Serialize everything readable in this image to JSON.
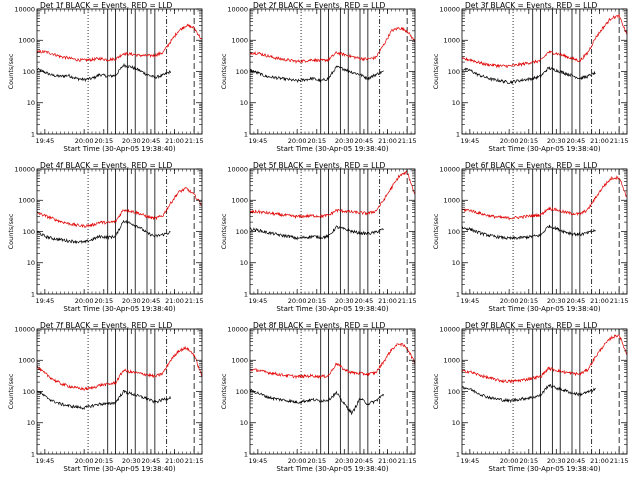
{
  "figure": {
    "x_range_minutes": [
      0,
      42
    ],
    "y_range": [
      1,
      10000
    ],
    "y_scale": "log",
    "x_ticks": [
      {
        "label": "19:45",
        "t": 2
      },
      {
        "label": "20:00",
        "t": 12
      },
      {
        "label": "20:15",
        "t": 17
      },
      {
        "label": "20:30",
        "t": 24
      },
      {
        "label": "20:45",
        "t": 29
      },
      {
        "label": "21:00",
        "t": 35
      },
      {
        "label": "21:15",
        "t": 40
      }
    ],
    "y_ticks": [
      {
        "label": "1",
        "v": 1
      },
      {
        "label": "10",
        "v": 10
      },
      {
        "label": "100",
        "v": 100
      },
      {
        "label": "1000",
        "v": 1000
      },
      {
        "label": "10000",
        "v": 10000
      }
    ],
    "ylabel": "Counts/sec",
    "xlabel": "Start Time (30-Apr-05 19:38:40)",
    "colors": {
      "events": "#000000",
      "lld": "#e00000",
      "axis": "#000000"
    },
    "markers": {
      "dotted": 13,
      "solid": [
        18,
        20,
        23,
        25,
        28,
        30
      ],
      "dashed": [
        33,
        40
      ]
    }
  },
  "chart_data": [
    {
      "type": "line",
      "title": "Det 1f BLACK = Events, RED = LLD",
      "series": [
        {
          "name": "Events",
          "t": [
            0,
            2,
            4,
            6,
            8,
            10,
            12,
            14,
            16,
            18,
            20,
            22,
            24,
            26,
            28,
            30,
            32,
            34
          ],
          "values": [
            120,
            95,
            75,
            70,
            75,
            60,
            55,
            60,
            80,
            70,
            75,
            160,
            140,
            110,
            80,
            65,
            75,
            100
          ]
        },
        {
          "name": "LLD",
          "t": [
            0,
            2,
            4,
            6,
            8,
            10,
            12,
            14,
            16,
            18,
            20,
            22,
            24,
            26,
            28,
            30,
            32,
            34,
            36,
            38,
            40,
            42
          ],
          "values": [
            420,
            430,
            370,
            300,
            270,
            240,
            230,
            240,
            260,
            240,
            250,
            380,
            360,
            330,
            320,
            330,
            400,
            900,
            2000,
            3000,
            2500,
            1000
          ]
        }
      ]
    },
    {
      "type": "line",
      "title": "Det 2f BLACK = Events, RED = LLD",
      "series": [
        {
          "name": "Events",
          "t": [
            0,
            2,
            4,
            6,
            8,
            10,
            12,
            14,
            16,
            18,
            20,
            22,
            24,
            26,
            28,
            30,
            32,
            34
          ],
          "values": [
            110,
            90,
            70,
            65,
            60,
            55,
            50,
            55,
            60,
            50,
            60,
            140,
            120,
            95,
            80,
            60,
            80,
            100
          ]
        },
        {
          "name": "LLD",
          "t": [
            0,
            2,
            4,
            6,
            8,
            10,
            12,
            14,
            16,
            18,
            20,
            22,
            24,
            26,
            28,
            30,
            32,
            34,
            36,
            38,
            40,
            42
          ],
          "values": [
            400,
            390,
            330,
            280,
            250,
            230,
            210,
            220,
            240,
            220,
            240,
            400,
            350,
            300,
            260,
            250,
            280,
            700,
            2000,
            2500,
            2000,
            900
          ]
        }
      ]
    },
    {
      "type": "line",
      "title": "Det 3f BLACK = Events, RED = LLD",
      "series": [
        {
          "name": "Events",
          "t": [
            0,
            2,
            4,
            6,
            8,
            10,
            12,
            14,
            16,
            18,
            20,
            22,
            24,
            26,
            28,
            30,
            32,
            34
          ],
          "values": [
            120,
            110,
            80,
            65,
            55,
            50,
            45,
            50,
            55,
            60,
            70,
            130,
            110,
            90,
            75,
            60,
            70,
            90
          ]
        },
        {
          "name": "LLD",
          "t": [
            0,
            2,
            4,
            6,
            8,
            10,
            12,
            14,
            16,
            18,
            20,
            22,
            24,
            26,
            28,
            30,
            32,
            34,
            36,
            38,
            40,
            42
          ],
          "values": [
            250,
            240,
            200,
            170,
            160,
            150,
            150,
            160,
            180,
            200,
            220,
            420,
            380,
            320,
            260,
            220,
            400,
            1200,
            2600,
            5200,
            6000,
            1500
          ]
        }
      ]
    },
    {
      "type": "line",
      "title": "Det 4f BLACK = Events, RED = LLD",
      "series": [
        {
          "name": "Events",
          "t": [
            0,
            2,
            4,
            6,
            8,
            10,
            12,
            14,
            16,
            18,
            20,
            22,
            24,
            26,
            28,
            30,
            32,
            34
          ],
          "values": [
            100,
            70,
            60,
            55,
            50,
            48,
            45,
            55,
            70,
            65,
            70,
            220,
            180,
            140,
            90,
            70,
            80,
            95
          ]
        },
        {
          "name": "LLD",
          "t": [
            0,
            2,
            4,
            6,
            8,
            10,
            12,
            14,
            16,
            18,
            20,
            22,
            24,
            26,
            28,
            30,
            32,
            34,
            36,
            38,
            40,
            42
          ],
          "values": [
            400,
            320,
            260,
            210,
            180,
            160,
            150,
            160,
            200,
            190,
            210,
            500,
            450,
            380,
            300,
            260,
            320,
            800,
            1800,
            2400,
            1500,
            700
          ]
        }
      ]
    },
    {
      "type": "line",
      "title": "Det 5f BLACK = Events, RED = LLD",
      "series": [
        {
          "name": "Events",
          "t": [
            0,
            2,
            4,
            6,
            8,
            10,
            12,
            14,
            16,
            18,
            20,
            22,
            24,
            26,
            28,
            30,
            32,
            34
          ],
          "values": [
            120,
            110,
            95,
            85,
            75,
            70,
            60,
            65,
            70,
            65,
            70,
            140,
            120,
            100,
            90,
            85,
            95,
            120
          ]
        },
        {
          "name": "LLD",
          "t": [
            0,
            2,
            4,
            6,
            8,
            10,
            12,
            14,
            16,
            18,
            20,
            22,
            24,
            26,
            28,
            30,
            32,
            34,
            36,
            38,
            40,
            42
          ],
          "values": [
            420,
            430,
            400,
            370,
            340,
            320,
            300,
            310,
            320,
            310,
            330,
            480,
            450,
            420,
            400,
            380,
            450,
            1000,
            2500,
            6000,
            8000,
            1500
          ]
        }
      ]
    },
    {
      "type": "line",
      "title": "Det 6f BLACK = Events, RED = LLD",
      "series": [
        {
          "name": "Events",
          "t": [
            0,
            2,
            4,
            6,
            8,
            10,
            12,
            14,
            16,
            18,
            20,
            22,
            24,
            26,
            28,
            30,
            32,
            34
          ],
          "values": [
            130,
            120,
            95,
            80,
            70,
            65,
            60,
            62,
            65,
            70,
            75,
            150,
            125,
            100,
            85,
            80,
            90,
            110
          ]
        },
        {
          "name": "LLD",
          "t": [
            0,
            2,
            4,
            6,
            8,
            10,
            12,
            14,
            16,
            18,
            20,
            22,
            24,
            26,
            28,
            30,
            32,
            34,
            36,
            38,
            40,
            42
          ],
          "values": [
            500,
            480,
            400,
            340,
            300,
            280,
            270,
            280,
            300,
            320,
            340,
            550,
            500,
            420,
            380,
            360,
            500,
            1200,
            2800,
            5000,
            5500,
            1200
          ]
        }
      ]
    },
    {
      "type": "line",
      "title": "Det 7f BLACK = Events, RED = LLD",
      "series": [
        {
          "name": "Events",
          "t": [
            0,
            2,
            4,
            6,
            8,
            10,
            12,
            14,
            16,
            18,
            20,
            22,
            24,
            26,
            28,
            30,
            32,
            34
          ],
          "values": [
            110,
            70,
            50,
            40,
            35,
            32,
            30,
            35,
            40,
            40,
            45,
            100,
            85,
            70,
            60,
            45,
            55,
            65
          ]
        },
        {
          "name": "LLD",
          "t": [
            0,
            2,
            4,
            6,
            8,
            10,
            12,
            14,
            16,
            18,
            20,
            22,
            24,
            26,
            28,
            30,
            32,
            34,
            36,
            38,
            40,
            42
          ],
          "values": [
            600,
            380,
            250,
            180,
            150,
            130,
            120,
            130,
            160,
            170,
            190,
            480,
            420,
            380,
            350,
            300,
            380,
            1000,
            2000,
            2500,
            1500,
            300
          ]
        }
      ]
    },
    {
      "type": "line",
      "title": "Det 8f BLACK = Events, RED = LLD",
      "series": [
        {
          "name": "Events",
          "t": [
            0,
            2,
            4,
            6,
            8,
            10,
            12,
            14,
            16,
            18,
            20,
            22,
            24,
            26,
            28,
            30,
            32,
            34
          ],
          "values": [
            110,
            90,
            70,
            60,
            55,
            50,
            45,
            50,
            55,
            50,
            55,
            90,
            40,
            20,
            60,
            40,
            50,
            80
          ]
        },
        {
          "name": "LLD",
          "t": [
            0,
            2,
            4,
            6,
            8,
            10,
            12,
            14,
            16,
            18,
            20,
            22,
            24,
            26,
            28,
            30,
            32,
            34,
            36,
            38,
            40,
            42
          ],
          "values": [
            500,
            480,
            420,
            380,
            340,
            320,
            300,
            310,
            320,
            300,
            320,
            800,
            500,
            400,
            380,
            360,
            400,
            900,
            2200,
            3500,
            2500,
            800
          ]
        }
      ]
    },
    {
      "type": "line",
      "title": "Det 9f BLACK = Events, RED = LLD",
      "series": [
        {
          "name": "Events",
          "t": [
            0,
            2,
            4,
            6,
            8,
            10,
            12,
            14,
            16,
            18,
            20,
            22,
            24,
            26,
            28,
            30,
            32,
            34
          ],
          "values": [
            140,
            120,
            90,
            70,
            60,
            55,
            50,
            55,
            60,
            65,
            75,
            160,
            130,
            110,
            90,
            80,
            95,
            120
          ]
        },
        {
          "name": "LLD",
          "t": [
            0,
            2,
            4,
            6,
            8,
            10,
            12,
            14,
            16,
            18,
            20,
            22,
            24,
            26,
            28,
            30,
            32,
            34,
            36,
            38,
            40,
            42
          ],
          "values": [
            450,
            430,
            350,
            290,
            250,
            220,
            210,
            220,
            240,
            270,
            300,
            550,
            480,
            420,
            380,
            360,
            500,
            1300,
            2900,
            5300,
            6500,
            1500
          ]
        }
      ]
    }
  ]
}
